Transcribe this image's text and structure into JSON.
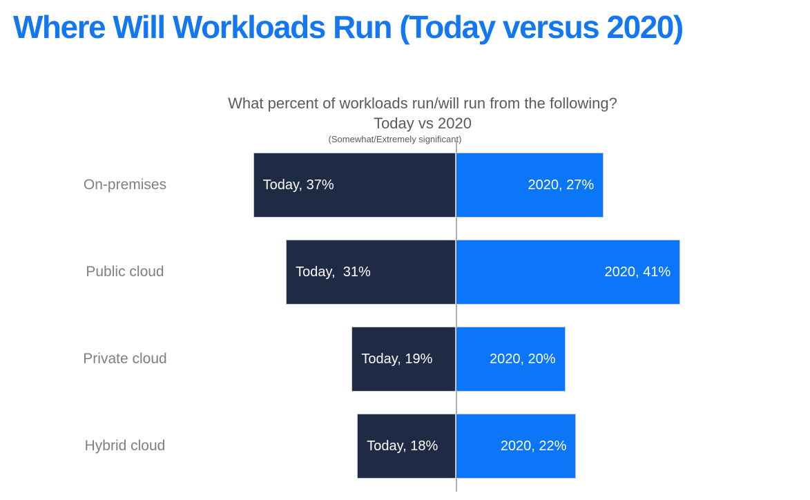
{
  "page_title": "Where Will Workloads Run (Today versus 2020)",
  "colors": {
    "background": "#FFFFFF",
    "title_blue": "#1477F2",
    "today_navy": "#1F2A44",
    "blue_2020": "#0B76F7",
    "axis_gray": "#ADADAD",
    "subtitle_gray": "#5A5A5A",
    "category_gray": "#7F7F7F",
    "bar_label_white": "#FFFFFF",
    "bar_border": "#C4C9D2"
  },
  "chart_data": {
    "type": "bar",
    "variant": "diverging-horizontal",
    "title": "What percent of workloads run/will run from the following?",
    "subtitle": "Today vs 2020",
    "note": "(Somewhat/Extremely significant)",
    "categories": [
      "On-premises",
      "Public cloud",
      "Private cloud",
      "Hybrid cloud"
    ],
    "series": [
      {
        "name": "Today",
        "direction": "left",
        "color": "#1F2A44",
        "values": [
          37,
          31,
          19,
          18
        ],
        "labels": [
          "Today, 37%",
          "Today,  31%",
          "Today, 19%",
          "Today, 18%"
        ]
      },
      {
        "name": "2020",
        "direction": "right",
        "color": "#0B76F7",
        "values": [
          27,
          41,
          20,
          22
        ],
        "labels": [
          "2020, 27%",
          "2020, 41%",
          "2020, 20%",
          "2020, 22%"
        ]
      }
    ],
    "axis": {
      "unit": "%",
      "center_value": 0,
      "gridlines": false,
      "tick_labels": "none",
      "legend": "none (series named inside bar labels)"
    }
  }
}
